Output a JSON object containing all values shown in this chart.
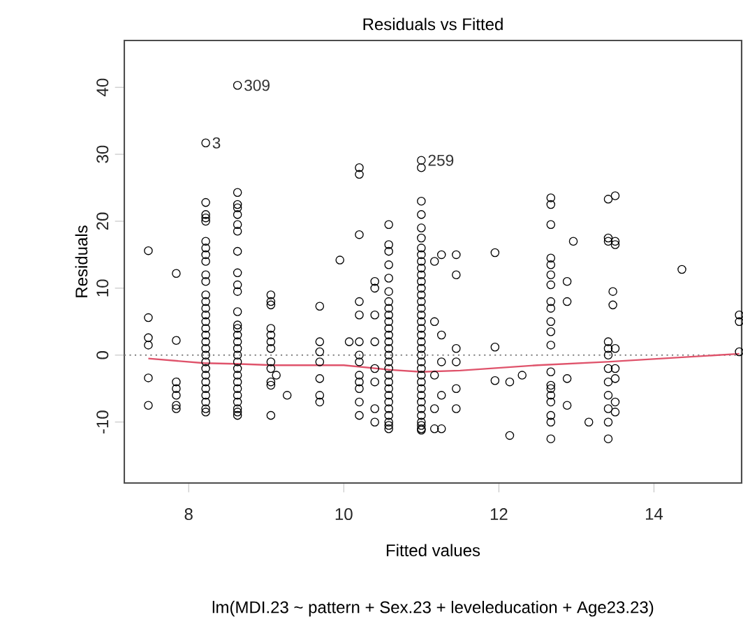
{
  "chart_data": {
    "type": "scatter",
    "title": "Residuals vs Fitted",
    "xlabel": "Fitted values",
    "subtitle": "lm(MDI.23 ~ pattern + Sex.23 + leveleducation + Age23.23)",
    "ylabel": "Residuals",
    "xlim": [
      7.17,
      15.13
    ],
    "ylim": [
      -19.1,
      47
    ],
    "xticks": [
      8,
      10,
      12,
      14
    ],
    "yticks": [
      -10,
      0,
      10,
      20,
      30,
      40
    ],
    "series": [
      {
        "type": "scatter",
        "marker": "circle",
        "color": "#000000",
        "x": [
          7.48,
          7.48,
          7.48,
          7.48,
          7.48,
          7.48,
          7.84,
          7.84,
          7.84,
          7.84,
          7.84,
          7.84,
          7.84,
          8.22,
          8.22,
          8.22,
          8.22,
          8.22,
          8.22,
          8.22,
          8.22,
          8.22,
          8.22,
          8.22,
          8.22,
          8.22,
          8.22,
          8.22,
          8.22,
          8.22,
          8.22,
          8.22,
          8.22,
          8.22,
          8.22,
          8.22,
          8.22,
          8.22,
          8.22,
          8.22,
          8.22,
          8.22,
          8.22,
          8.63,
          8.63,
          8.63,
          8.63,
          8.63,
          8.63,
          8.63,
          8.63,
          8.63,
          8.63,
          8.63,
          8.63,
          8.63,
          8.63,
          8.63,
          8.63,
          8.63,
          8.63,
          8.63,
          8.63,
          8.63,
          8.63,
          8.63,
          8.63,
          8.63,
          8.63,
          8.63,
          8.63,
          9.06,
          9.06,
          9.06,
          9.06,
          9.06,
          9.06,
          9.06,
          9.06,
          9.06,
          9.06,
          9.06,
          9.06,
          9.13,
          9.27,
          9.69,
          9.69,
          9.69,
          9.69,
          9.69,
          9.69,
          9.69,
          9.95,
          10.07,
          10.2,
          10.2,
          10.2,
          10.2,
          10.2,
          10.2,
          10.2,
          10.2,
          10.2,
          10.2,
          10.2,
          10.2,
          10.2,
          10.4,
          10.4,
          10.4,
          10.4,
          10.4,
          10.4,
          10.4,
          10.4,
          10.58,
          10.58,
          10.58,
          10.58,
          10.58,
          10.58,
          10.58,
          10.58,
          10.58,
          10.58,
          10.58,
          10.58,
          10.58,
          10.58,
          10.58,
          10.58,
          10.58,
          10.58,
          10.58,
          10.58,
          10.58,
          10.58,
          10.58,
          10.58,
          10.58,
          10.58,
          10.58,
          11.0,
          11.0,
          11.0,
          11.0,
          11.0,
          11.0,
          11.0,
          11.0,
          11.0,
          11.0,
          11.0,
          11.0,
          11.0,
          11.0,
          11.0,
          11.0,
          11.0,
          11.0,
          11.0,
          11.0,
          11.0,
          11.0,
          11.0,
          11.0,
          11.0,
          11.0,
          11.0,
          11.0,
          11.0,
          11.0,
          11.0,
          11.0,
          11.0,
          11.0,
          11.0,
          11.0,
          11.17,
          11.17,
          11.17,
          11.17,
          11.17,
          11.26,
          11.26,
          11.26,
          11.26,
          11.26,
          11.45,
          11.45,
          11.45,
          11.45,
          11.45,
          11.45,
          11.95,
          11.95,
          11.95,
          12.14,
          12.14,
          12.3,
          12.67,
          12.67,
          12.67,
          12.67,
          12.67,
          12.67,
          12.67,
          12.67,
          12.67,
          12.67,
          12.67,
          12.67,
          12.67,
          12.67,
          12.67,
          12.67,
          12.67,
          12.67,
          12.67,
          12.67,
          12.88,
          12.88,
          12.88,
          12.88,
          12.96,
          13.16,
          13.41,
          13.41,
          13.41,
          13.41,
          13.41,
          13.41,
          13.41,
          13.41,
          13.41,
          13.41,
          13.41,
          13.41,
          13.47,
          13.47,
          13.5,
          13.5,
          13.5,
          13.5,
          13.5,
          13.5,
          13.5,
          13.5,
          14.36,
          15.1,
          15.1,
          15.1
        ],
        "values": [
          15.6,
          5.6,
          2.6,
          1.5,
          -3.4,
          -7.5,
          12.2,
          2.2,
          -4,
          -5,
          -6,
          -7.5,
          -8,
          31.7,
          22.8,
          21,
          20.5,
          20,
          17,
          16,
          15,
          14,
          12,
          11,
          9,
          8,
          7,
          6,
          5,
          4,
          3,
          2,
          1,
          0,
          -1,
          -2,
          -3,
          -4,
          -5,
          -6,
          -7,
          -8,
          -8.5,
          40.3,
          24.3,
          22.5,
          22,
          21,
          19.5,
          18.5,
          15.5,
          12.3,
          10.5,
          9.5,
          6.5,
          4.5,
          4,
          3,
          2,
          1,
          0,
          -1,
          -2,
          -3,
          -4,
          -5,
          -6,
          -7,
          -8,
          -8.5,
          -9,
          9,
          8,
          7.5,
          4,
          3,
          2,
          1,
          -1,
          -2,
          -4,
          -4.5,
          -9,
          -3,
          -6,
          7.3,
          2,
          0.5,
          -1,
          -3.5,
          -6,
          -7,
          14.2,
          2,
          28,
          27,
          18,
          8,
          6,
          2,
          0,
          -1,
          -3,
          -4,
          -5,
          -7,
          -9,
          11,
          10,
          6,
          2,
          -2,
          -4,
          -8,
          -10,
          19.5,
          16.5,
          15.5,
          13.5,
          11.5,
          9.5,
          8,
          7,
          6,
          5,
          4,
          3,
          2,
          1,
          0,
          -1,
          -2,
          -3,
          -4,
          -5,
          -6,
          -7,
          -8,
          -9,
          -10,
          -10.5,
          -11,
          29.1,
          28,
          23,
          21,
          19,
          17.5,
          16,
          15,
          14,
          13,
          12,
          11,
          10,
          9,
          8,
          7,
          6,
          5,
          4,
          3,
          2,
          1,
          0,
          -1,
          -2,
          -3,
          -4,
          -5,
          -6,
          -7,
          -8,
          -9,
          -10,
          -10.5,
          -11,
          -11.2,
          14,
          5,
          -3,
          -8,
          -11,
          15,
          3,
          -1,
          -6,
          -11,
          15,
          12,
          1,
          -1,
          -5,
          -8,
          15.3,
          1.2,
          -3.8,
          -4,
          -12,
          -3,
          23.5,
          22.5,
          19.5,
          14.5,
          13.5,
          12,
          10.5,
          8,
          7,
          5,
          3.5,
          1.5,
          -2.5,
          -4.5,
          -5,
          -6,
          -7,
          -9,
          -10,
          -12.5,
          11,
          8,
          -3.5,
          -7.5,
          17,
          -10,
          23.3,
          17.5,
          17,
          2,
          1,
          0,
          -2,
          -4,
          -6,
          -8,
          -10,
          -12.5,
          9.5,
          7.5,
          23.8,
          17,
          16.5,
          1,
          -2,
          -3.5,
          -7,
          -8.5,
          12.8,
          6,
          5,
          0.5
        ]
      },
      {
        "type": "line",
        "marker": "none",
        "line_style": "solid",
        "color": "#df536b",
        "x": [
          7.48,
          8.2,
          8.6,
          9.1,
          10.0,
          10.6,
          11.0,
          11.5,
          12.5,
          13.4,
          15.1
        ],
        "values": [
          -0.5,
          -1.2,
          -1.3,
          -1.5,
          -1.5,
          -2.2,
          -2.5,
          -2.3,
          -1.5,
          -1.0,
          0.2
        ]
      }
    ],
    "ref_lines": [
      {
        "axis": "y",
        "value": 0,
        "color": "#808080",
        "line_style": "dotted"
      }
    ],
    "annotations": [
      {
        "text": "309",
        "x": 8.63,
        "y": 40.3
      },
      {
        "text": "3",
        "x": 8.22,
        "y": 31.7
      },
      {
        "text": "259",
        "x": 11.0,
        "y": 29.1
      }
    ]
  }
}
